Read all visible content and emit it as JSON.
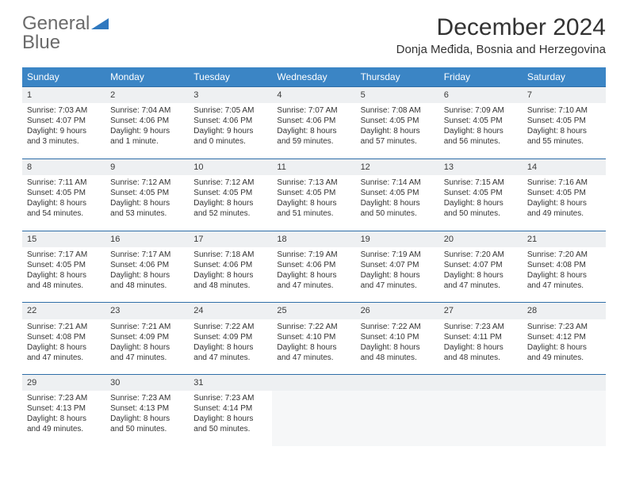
{
  "brand": {
    "part1": "General",
    "part2": "Blue"
  },
  "title": "December 2024",
  "location": "Donja Međida, Bosnia and Herzegovina",
  "colors": {
    "header_bg": "#3b85c5",
    "header_text": "#ffffff",
    "daynum_bg": "#eef0f2",
    "row_border": "#2f6ea8",
    "brand_gray": "#6b6b6b",
    "brand_blue": "#2f78bf"
  },
  "weekdays": [
    "Sunday",
    "Monday",
    "Tuesday",
    "Wednesday",
    "Thursday",
    "Friday",
    "Saturday"
  ],
  "weeks": [
    [
      {
        "n": "1",
        "sunrise": "Sunrise: 7:03 AM",
        "sunset": "Sunset: 4:07 PM",
        "daylight": "Daylight: 9 hours and 3 minutes."
      },
      {
        "n": "2",
        "sunrise": "Sunrise: 7:04 AM",
        "sunset": "Sunset: 4:06 PM",
        "daylight": "Daylight: 9 hours and 1 minute."
      },
      {
        "n": "3",
        "sunrise": "Sunrise: 7:05 AM",
        "sunset": "Sunset: 4:06 PM",
        "daylight": "Daylight: 9 hours and 0 minutes."
      },
      {
        "n": "4",
        "sunrise": "Sunrise: 7:07 AM",
        "sunset": "Sunset: 4:06 PM",
        "daylight": "Daylight: 8 hours and 59 minutes."
      },
      {
        "n": "5",
        "sunrise": "Sunrise: 7:08 AM",
        "sunset": "Sunset: 4:05 PM",
        "daylight": "Daylight: 8 hours and 57 minutes."
      },
      {
        "n": "6",
        "sunrise": "Sunrise: 7:09 AM",
        "sunset": "Sunset: 4:05 PM",
        "daylight": "Daylight: 8 hours and 56 minutes."
      },
      {
        "n": "7",
        "sunrise": "Sunrise: 7:10 AM",
        "sunset": "Sunset: 4:05 PM",
        "daylight": "Daylight: 8 hours and 55 minutes."
      }
    ],
    [
      {
        "n": "8",
        "sunrise": "Sunrise: 7:11 AM",
        "sunset": "Sunset: 4:05 PM",
        "daylight": "Daylight: 8 hours and 54 minutes."
      },
      {
        "n": "9",
        "sunrise": "Sunrise: 7:12 AM",
        "sunset": "Sunset: 4:05 PM",
        "daylight": "Daylight: 8 hours and 53 minutes."
      },
      {
        "n": "10",
        "sunrise": "Sunrise: 7:12 AM",
        "sunset": "Sunset: 4:05 PM",
        "daylight": "Daylight: 8 hours and 52 minutes."
      },
      {
        "n": "11",
        "sunrise": "Sunrise: 7:13 AM",
        "sunset": "Sunset: 4:05 PM",
        "daylight": "Daylight: 8 hours and 51 minutes."
      },
      {
        "n": "12",
        "sunrise": "Sunrise: 7:14 AM",
        "sunset": "Sunset: 4:05 PM",
        "daylight": "Daylight: 8 hours and 50 minutes."
      },
      {
        "n": "13",
        "sunrise": "Sunrise: 7:15 AM",
        "sunset": "Sunset: 4:05 PM",
        "daylight": "Daylight: 8 hours and 50 minutes."
      },
      {
        "n": "14",
        "sunrise": "Sunrise: 7:16 AM",
        "sunset": "Sunset: 4:05 PM",
        "daylight": "Daylight: 8 hours and 49 minutes."
      }
    ],
    [
      {
        "n": "15",
        "sunrise": "Sunrise: 7:17 AM",
        "sunset": "Sunset: 4:05 PM",
        "daylight": "Daylight: 8 hours and 48 minutes."
      },
      {
        "n": "16",
        "sunrise": "Sunrise: 7:17 AM",
        "sunset": "Sunset: 4:06 PM",
        "daylight": "Daylight: 8 hours and 48 minutes."
      },
      {
        "n": "17",
        "sunrise": "Sunrise: 7:18 AM",
        "sunset": "Sunset: 4:06 PM",
        "daylight": "Daylight: 8 hours and 48 minutes."
      },
      {
        "n": "18",
        "sunrise": "Sunrise: 7:19 AM",
        "sunset": "Sunset: 4:06 PM",
        "daylight": "Daylight: 8 hours and 47 minutes."
      },
      {
        "n": "19",
        "sunrise": "Sunrise: 7:19 AM",
        "sunset": "Sunset: 4:07 PM",
        "daylight": "Daylight: 8 hours and 47 minutes."
      },
      {
        "n": "20",
        "sunrise": "Sunrise: 7:20 AM",
        "sunset": "Sunset: 4:07 PM",
        "daylight": "Daylight: 8 hours and 47 minutes."
      },
      {
        "n": "21",
        "sunrise": "Sunrise: 7:20 AM",
        "sunset": "Sunset: 4:08 PM",
        "daylight": "Daylight: 8 hours and 47 minutes."
      }
    ],
    [
      {
        "n": "22",
        "sunrise": "Sunrise: 7:21 AM",
        "sunset": "Sunset: 4:08 PM",
        "daylight": "Daylight: 8 hours and 47 minutes."
      },
      {
        "n": "23",
        "sunrise": "Sunrise: 7:21 AM",
        "sunset": "Sunset: 4:09 PM",
        "daylight": "Daylight: 8 hours and 47 minutes."
      },
      {
        "n": "24",
        "sunrise": "Sunrise: 7:22 AM",
        "sunset": "Sunset: 4:09 PM",
        "daylight": "Daylight: 8 hours and 47 minutes."
      },
      {
        "n": "25",
        "sunrise": "Sunrise: 7:22 AM",
        "sunset": "Sunset: 4:10 PM",
        "daylight": "Daylight: 8 hours and 47 minutes."
      },
      {
        "n": "26",
        "sunrise": "Sunrise: 7:22 AM",
        "sunset": "Sunset: 4:10 PM",
        "daylight": "Daylight: 8 hours and 48 minutes."
      },
      {
        "n": "27",
        "sunrise": "Sunrise: 7:23 AM",
        "sunset": "Sunset: 4:11 PM",
        "daylight": "Daylight: 8 hours and 48 minutes."
      },
      {
        "n": "28",
        "sunrise": "Sunrise: 7:23 AM",
        "sunset": "Sunset: 4:12 PM",
        "daylight": "Daylight: 8 hours and 49 minutes."
      }
    ],
    [
      {
        "n": "29",
        "sunrise": "Sunrise: 7:23 AM",
        "sunset": "Sunset: 4:13 PM",
        "daylight": "Daylight: 8 hours and 49 minutes."
      },
      {
        "n": "30",
        "sunrise": "Sunrise: 7:23 AM",
        "sunset": "Sunset: 4:13 PM",
        "daylight": "Daylight: 8 hours and 50 minutes."
      },
      {
        "n": "31",
        "sunrise": "Sunrise: 7:23 AM",
        "sunset": "Sunset: 4:14 PM",
        "daylight": "Daylight: 8 hours and 50 minutes."
      },
      null,
      null,
      null,
      null
    ]
  ]
}
